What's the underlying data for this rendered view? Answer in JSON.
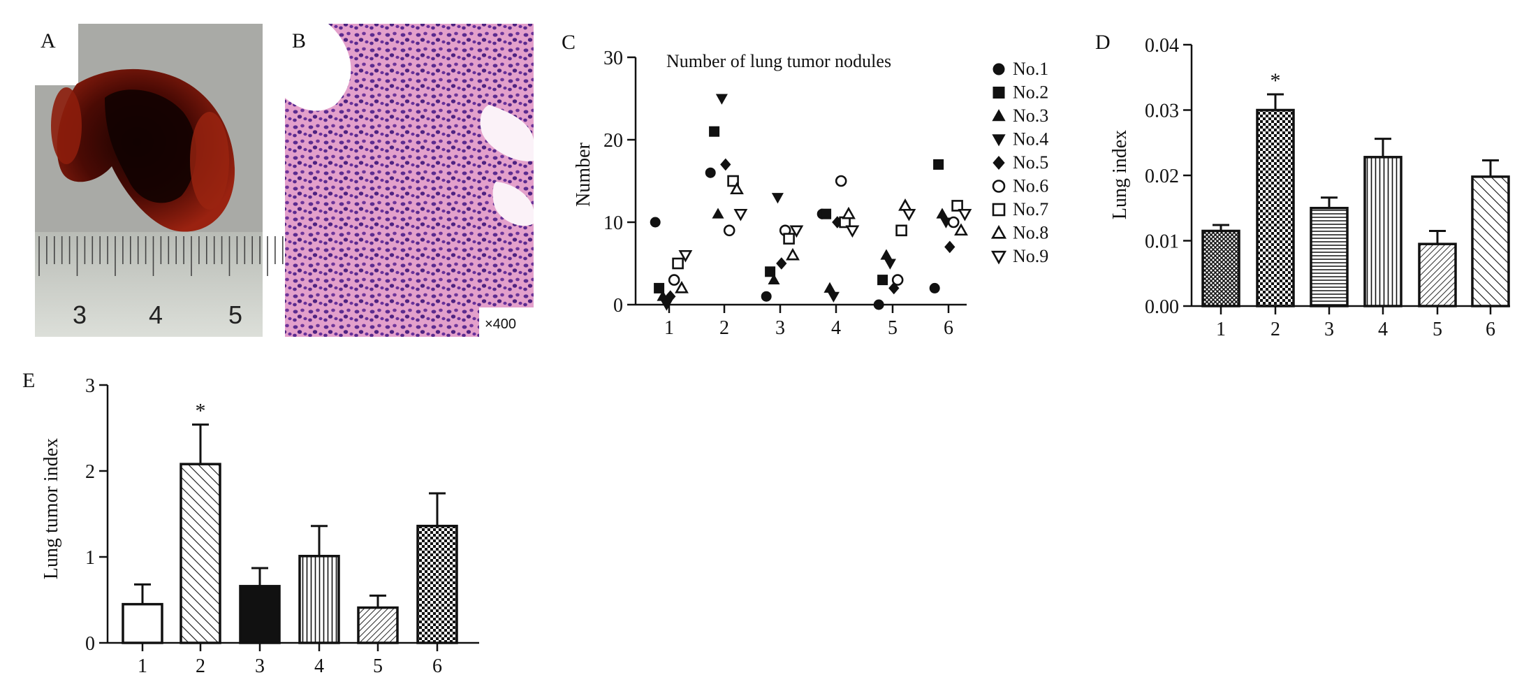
{
  "panels": {
    "A": {
      "label": "A",
      "ruler_numbers": [
        "3",
        "4",
        "5"
      ]
    },
    "B": {
      "label": "B",
      "magnification": "×400"
    },
    "C": {
      "label": "C"
    },
    "D": {
      "label": "D"
    },
    "E": {
      "label": "E"
    }
  },
  "colors": {
    "ink": "#111111",
    "lung_tissue": "#7a1508",
    "lung_dark": "#140302",
    "ruler": "#c9ccc6",
    "he_stain_pink": "#e7a6cf",
    "he_stain_purple": "#5b2b8f"
  },
  "chart_data": [
    {
      "panel": "C",
      "type": "scatter",
      "title": "Number of lung tumor nodules",
      "xlabel": "",
      "ylabel": "Number",
      "categories": [
        "1",
        "2",
        "3",
        "4",
        "5",
        "6"
      ],
      "ylim": [
        0,
        30
      ],
      "yticks": [
        "0",
        "10",
        "20",
        "30"
      ],
      "legend_position": "right",
      "series": [
        {
          "name": "No.1",
          "marker": "filled-circle",
          "values": [
            10,
            16,
            1,
            11,
            0,
            2
          ]
        },
        {
          "name": "No.2",
          "marker": "filled-square",
          "values": [
            2,
            21,
            4,
            11,
            3,
            17
          ]
        },
        {
          "name": "No.3",
          "marker": "filled-triangle-up",
          "values": [
            1,
            11,
            3,
            2,
            6,
            11
          ]
        },
        {
          "name": "No.4",
          "marker": "filled-triangle-down",
          "values": [
            0,
            25,
            13,
            1,
            5,
            10
          ]
        },
        {
          "name": "No.5",
          "marker": "filled-diamond",
          "values": [
            1,
            17,
            5,
            10,
            2,
            7
          ]
        },
        {
          "name": "No.6",
          "marker": "open-circle",
          "values": [
            3,
            9,
            9,
            15,
            3,
            10
          ]
        },
        {
          "name": "No.7",
          "marker": "open-square",
          "values": [
            5,
            15,
            8,
            10,
            9,
            12
          ]
        },
        {
          "name": "No.8",
          "marker": "open-triangle-up",
          "values": [
            2,
            14,
            6,
            11,
            12,
            9
          ]
        },
        {
          "name": "No.9",
          "marker": "open-triangle-down",
          "values": [
            6,
            11,
            9,
            9,
            11,
            11
          ]
        }
      ]
    },
    {
      "panel": "D",
      "type": "bar",
      "title": "",
      "xlabel": "",
      "ylabel": "Lung index",
      "categories": [
        "1",
        "2",
        "3",
        "4",
        "5",
        "6"
      ],
      "values": [
        0.0115,
        0.03,
        0.015,
        0.0228,
        0.0095,
        0.0198
      ],
      "error": [
        0.0009,
        0.0024,
        0.0016,
        0.0028,
        0.002,
        0.0025
      ],
      "significance": [
        "",
        "*",
        "",
        "",
        "",
        ""
      ],
      "fills": [
        "crosshatch",
        "checker",
        "horizontal",
        "vertical",
        "diagonal-dense",
        "diagonal-sparse"
      ],
      "ylim": [
        0,
        0.04
      ],
      "yticks": [
        "0.00",
        "0.01",
        "0.02",
        "0.03",
        "0.04"
      ]
    },
    {
      "panel": "E",
      "type": "bar",
      "title": "",
      "xlabel": "",
      "ylabel": "Lung tumor index",
      "categories": [
        "1",
        "2",
        "3",
        "4",
        "5",
        "6"
      ],
      "values": [
        0.45,
        2.08,
        0.66,
        1.01,
        0.41,
        1.36
      ],
      "error": [
        0.23,
        0.46,
        0.21,
        0.35,
        0.14,
        0.38
      ],
      "significance": [
        "",
        "*",
        "",
        "",
        "",
        ""
      ],
      "fills": [
        "white",
        "diagonal-sparse",
        "black",
        "vertical",
        "diagonal-dense",
        "checker"
      ],
      "ylim": [
        0,
        3
      ],
      "yticks": [
        "0",
        "1",
        "2",
        "3"
      ]
    }
  ]
}
